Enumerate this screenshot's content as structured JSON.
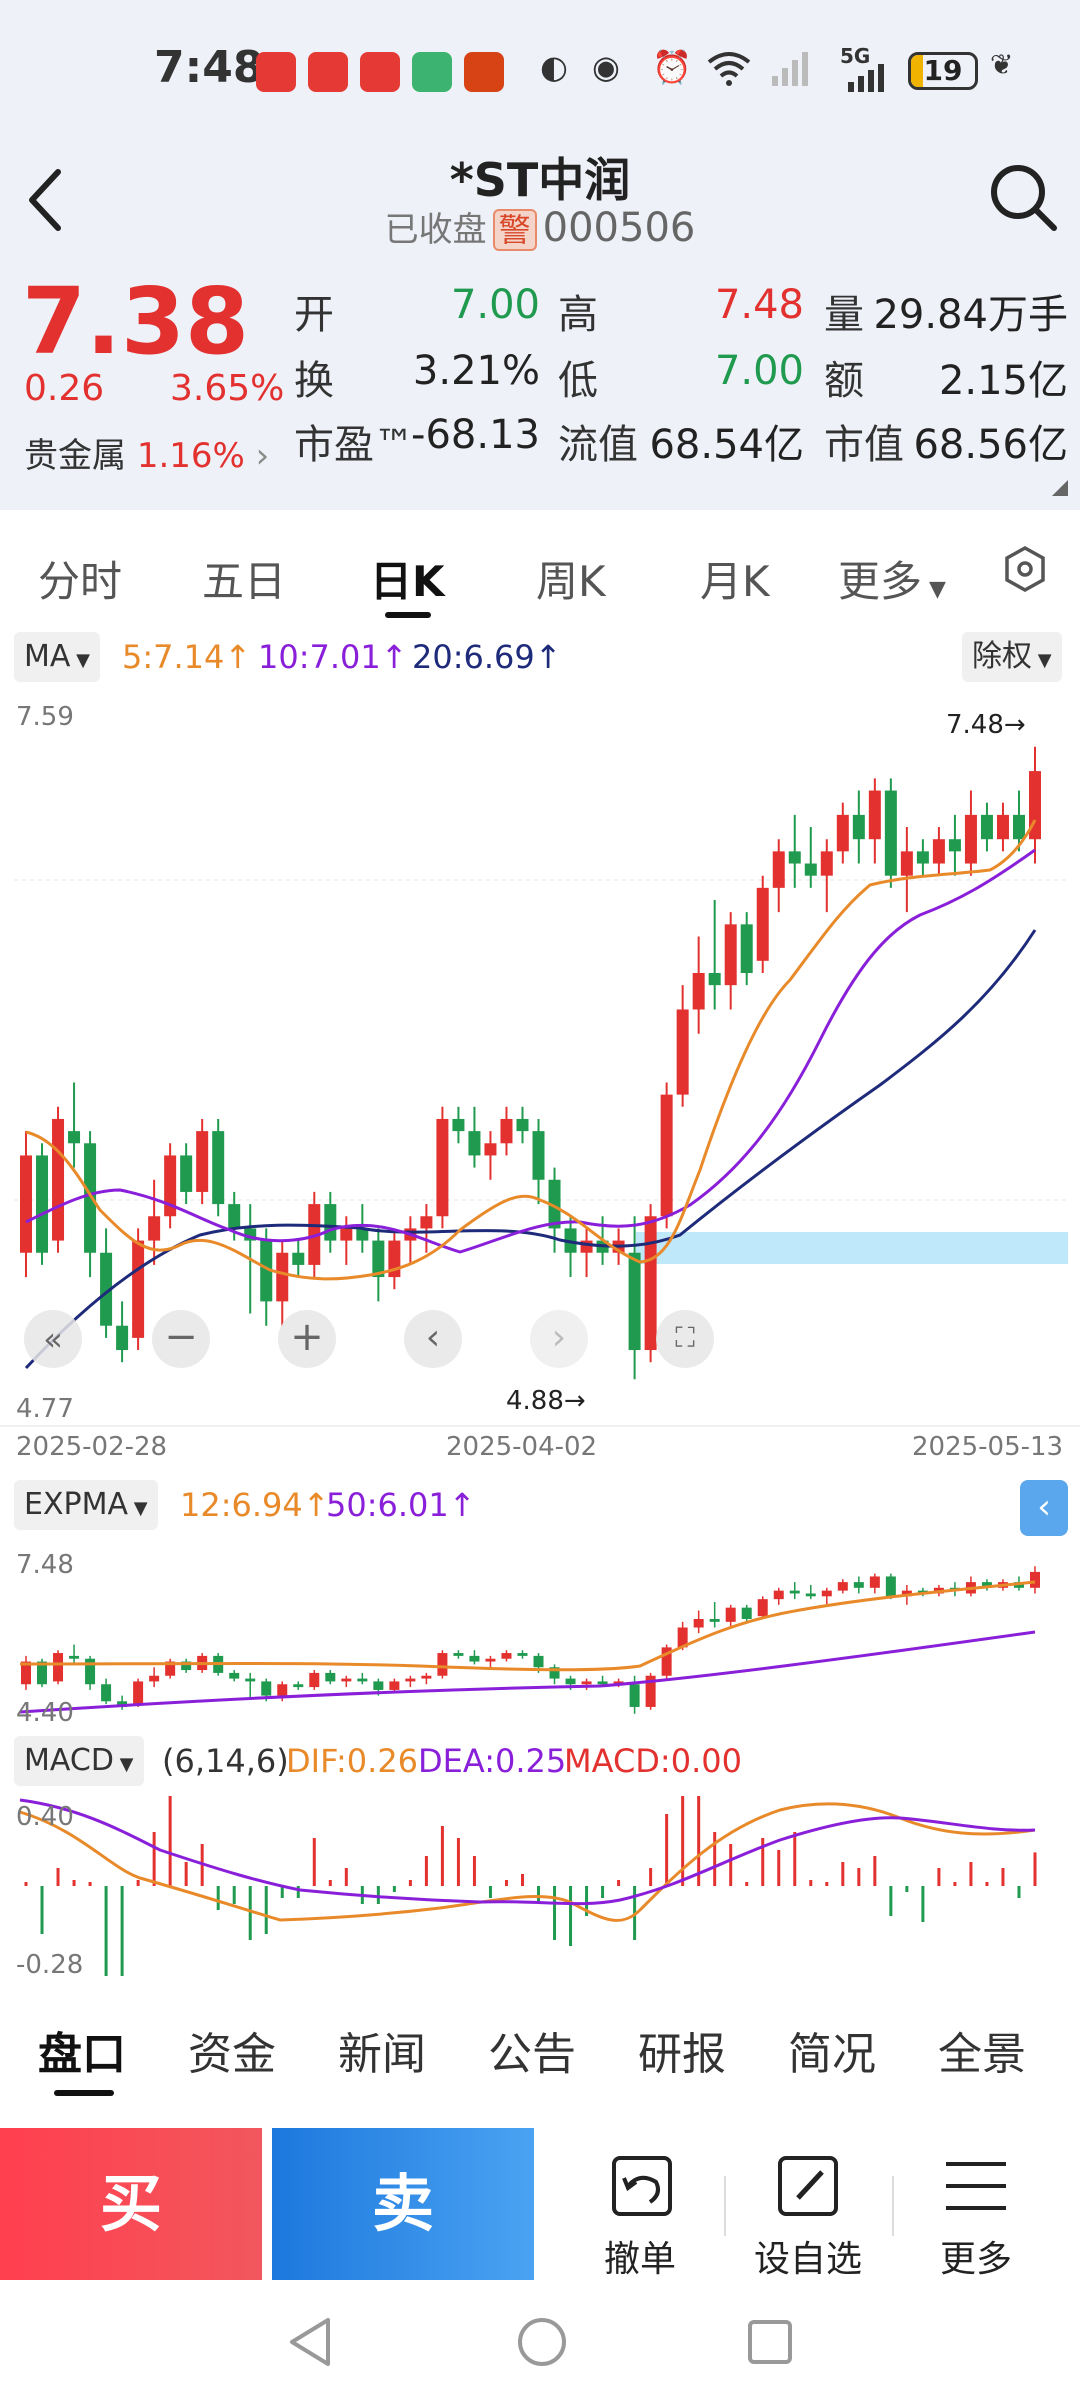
{
  "status_bar": {
    "time": "7:48",
    "battery": "19",
    "battery_level": 0.19,
    "network": "5G"
  },
  "header": {
    "title": "*ST中润",
    "status": "已收盘",
    "warning_badge": "警",
    "code": "000506"
  },
  "quote": {
    "price": "7.38",
    "change": "0.26",
    "change_pct": "3.65%",
    "sector_name": "贵金属",
    "sector_pct": "1.16%",
    "open_label": "开",
    "open": "7.00",
    "high_label": "高",
    "high": "7.48",
    "volume_label": "量",
    "volume": "29.84万手",
    "turnover_label": "换",
    "turnover": "3.21%",
    "low_label": "低",
    "low": "7.00",
    "amount_label": "额",
    "amount": "2.15亿",
    "pe_label": "市盈™",
    "pe": "-68.13",
    "float_cap_label": "流值",
    "float_cap": "68.54亿",
    "mkt_cap_label": "市值",
    "mkt_cap": "68.56亿"
  },
  "period_tabs": [
    "分时",
    "五日",
    "日K",
    "周K",
    "月K",
    "更多"
  ],
  "active_period": "日K",
  "ma_bar": {
    "button": "MA",
    "ma5": "5:7.14",
    "ma10": "10:7.01",
    "ma20": "20:6.69",
    "adjust_button": "除权"
  },
  "kline": {
    "y_max_label": "7.59",
    "y_min_label": "4.77",
    "high_annotation": "7.48→",
    "low_annotation": "4.88→",
    "dates": [
      "2025-02-28",
      "2025-04-02",
      "2025-05-13"
    ]
  },
  "expma_bar": {
    "button": "EXPMA",
    "e12": "12:6.94",
    "e50": "50:6.01",
    "y_max_label": "7.48",
    "y_min_label": "4.40"
  },
  "macd_bar": {
    "button": "MACD",
    "params": "(6,14,6)",
    "dif": "DIF:0.26",
    "dea": "DEA:0.25",
    "macd": "MACD:0.00",
    "y_max_label": "0.40",
    "y_min_label": "-0.28"
  },
  "bottom_tabs": [
    "盘口",
    "资金",
    "新闻",
    "公告",
    "研报",
    "简况",
    "全景"
  ],
  "actions": {
    "buy": "买",
    "sell": "卖",
    "cancel_order": "撤单",
    "add_watchlist": "设自选",
    "more": "更多"
  },
  "colors": {
    "up": "#e2312f",
    "down": "#1f9a4e",
    "ma5": "#e98a2a",
    "ma10": "#8a1fd9",
    "ma20": "#1e2a7a",
    "buy": "#ff3f4e",
    "sell": "#1c78dd"
  },
  "chart_data": {
    "type": "candlestick",
    "y_range": [
      4.77,
      7.59
    ],
    "candles": [
      [
        5.4,
        5.9,
        5.3,
        5.8
      ],
      [
        5.8,
        5.85,
        5.35,
        5.4
      ],
      [
        5.45,
        6.0,
        5.4,
        5.95
      ],
      [
        5.9,
        6.1,
        5.75,
        5.85
      ],
      [
        5.85,
        5.9,
        5.3,
        5.4
      ],
      [
        5.4,
        5.5,
        5.05,
        5.1
      ],
      [
        5.1,
        5.2,
        4.95,
        5.0
      ],
      [
        5.05,
        5.5,
        5.0,
        5.45
      ],
      [
        5.45,
        5.7,
        5.35,
        5.55
      ],
      [
        5.55,
        5.85,
        5.5,
        5.8
      ],
      [
        5.8,
        5.85,
        5.6,
        5.65
      ],
      [
        5.65,
        5.95,
        5.6,
        5.9
      ],
      [
        5.9,
        5.95,
        5.55,
        5.6
      ],
      [
        5.6,
        5.65,
        5.45,
        5.5
      ],
      [
        5.5,
        5.6,
        5.15,
        5.45
      ],
      [
        5.45,
        5.5,
        5.1,
        5.2
      ],
      [
        5.2,
        5.45,
        5.1,
        5.4
      ],
      [
        5.4,
        5.45,
        5.3,
        5.35
      ],
      [
        5.35,
        5.65,
        5.3,
        5.6
      ],
      [
        5.6,
        5.65,
        5.4,
        5.45
      ],
      [
        5.45,
        5.55,
        5.35,
        5.5
      ],
      [
        5.5,
        5.6,
        5.4,
        5.45
      ],
      [
        5.45,
        5.5,
        5.2,
        5.3
      ],
      [
        5.3,
        5.5,
        5.25,
        5.45
      ],
      [
        5.45,
        5.55,
        5.35,
        5.5
      ],
      [
        5.5,
        5.6,
        5.4,
        5.55
      ],
      [
        5.55,
        6.0,
        5.5,
        5.95
      ],
      [
        5.95,
        6.0,
        5.85,
        5.9
      ],
      [
        5.9,
        6.0,
        5.75,
        5.8
      ],
      [
        5.8,
        5.9,
        5.7,
        5.85
      ],
      [
        5.85,
        6.0,
        5.8,
        5.95
      ],
      [
        5.95,
        6.0,
        5.85,
        5.9
      ],
      [
        5.9,
        5.95,
        5.6,
        5.7
      ],
      [
        5.7,
        5.75,
        5.4,
        5.5
      ],
      [
        5.5,
        5.55,
        5.3,
        5.4
      ],
      [
        5.4,
        5.5,
        5.3,
        5.45
      ],
      [
        5.45,
        5.55,
        5.35,
        5.4
      ],
      [
        5.4,
        5.5,
        5.35,
        5.45
      ],
      [
        5.4,
        5.55,
        4.88,
        5.0
      ],
      [
        5.0,
        5.6,
        4.95,
        5.55
      ],
      [
        5.55,
        6.1,
        5.5,
        6.05
      ],
      [
        6.05,
        6.5,
        6.0,
        6.4
      ],
      [
        6.4,
        6.7,
        6.3,
        6.55
      ],
      [
        6.55,
        6.85,
        6.4,
        6.5
      ],
      [
        6.5,
        6.8,
        6.4,
        6.75
      ],
      [
        6.75,
        6.8,
        6.5,
        6.55
      ],
      [
        6.6,
        6.95,
        6.55,
        6.9
      ],
      [
        6.9,
        7.1,
        6.8,
        7.05
      ],
      [
        7.05,
        7.2,
        6.9,
        7.0
      ],
      [
        7.0,
        7.15,
        6.9,
        6.95
      ],
      [
        6.95,
        7.1,
        6.8,
        7.05
      ],
      [
        7.05,
        7.25,
        7.0,
        7.2
      ],
      [
        7.2,
        7.3,
        7.0,
        7.1
      ],
      [
        7.1,
        7.35,
        7.0,
        7.3
      ],
      [
        7.3,
        7.35,
        6.9,
        6.95
      ],
      [
        6.95,
        7.15,
        6.8,
        7.05
      ],
      [
        7.05,
        7.1,
        6.95,
        7.0
      ],
      [
        7.0,
        7.15,
        6.95,
        7.1
      ],
      [
        7.1,
        7.2,
        6.95,
        7.05
      ],
      [
        7.0,
        7.3,
        6.95,
        7.2
      ],
      [
        7.2,
        7.25,
        7.05,
        7.1
      ],
      [
        7.1,
        7.25,
        7.05,
        7.2
      ],
      [
        7.2,
        7.3,
        7.05,
        7.1
      ],
      [
        7.1,
        7.48,
        7.0,
        7.38
      ]
    ]
  }
}
